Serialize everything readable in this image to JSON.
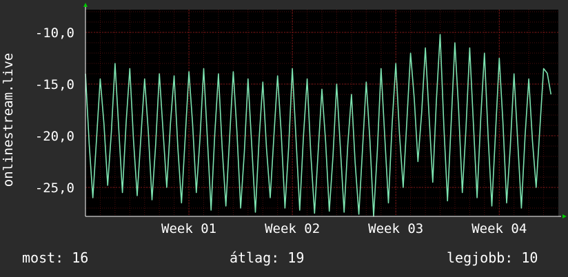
{
  "colors": {
    "background": "#2b2b2b",
    "plot_background": "#000000",
    "grid": "#8a1a1a",
    "axis": "#ffffff",
    "arrow": "#00cc00",
    "series": "#7de3b0"
  },
  "stats": {
    "now": "most: 16",
    "avg": "átlag: 19",
    "best": "legjobb: 10"
  },
  "chart_data": {
    "type": "line",
    "title": "",
    "xlabel": "",
    "ylabel": "onlinestream.live",
    "ylim": [
      -27.8,
      -7.8
    ],
    "yticks": [
      -10,
      -15,
      -20,
      -25
    ],
    "ytick_labels": [
      "-10,0",
      "-15,0",
      "-20,0",
      "-25,0"
    ],
    "xlim": [
      0,
      32
    ],
    "xticks": [
      7,
      14,
      21,
      28
    ],
    "xtick_labels": [
      "Week 01",
      "Week 02",
      "Week 03",
      "Week 04"
    ],
    "grid": true,
    "series": [
      {
        "x": [
          0,
          0.5,
          1,
          1.5,
          2,
          2.5,
          3,
          3.5,
          4,
          4.5,
          5,
          5.5,
          6,
          6.5,
          7,
          7.5,
          8,
          8.5,
          9,
          9.5,
          10,
          10.5,
          11,
          11.5,
          12,
          12.5,
          13,
          13.5,
          14,
          14.5,
          15,
          15.5,
          16,
          16.5,
          17,
          17.5,
          18,
          18.5,
          19,
          19.5,
          20,
          20.5,
          21,
          21.5,
          22,
          22.5,
          23,
          23.5,
          24,
          24.5,
          25,
          25.5,
          26,
          26.5,
          27,
          27.5,
          28,
          28.5,
          29,
          29.5,
          30,
          30.5,
          31,
          31.5
        ],
        "values": [
          -14.0,
          -26.0,
          -14.5,
          -24.8,
          -13.0,
          -25.5,
          -13.5,
          -25.8,
          -14.5,
          -26.2,
          -14.0,
          -25.0,
          -14.2,
          -26.5,
          -13.8,
          -25.5,
          -13.5,
          -27.2,
          -14.0,
          -26.8,
          -13.8,
          -27.0,
          -14.5,
          -27.4,
          -14.8,
          -26.0,
          -14.2,
          -27.0,
          -13.5,
          -27.2,
          -14.5,
          -27.5,
          -15.5,
          -27.3,
          -15.0,
          -27.4,
          -16.0,
          -27.6,
          -14.8,
          -27.8,
          -13.5,
          -26.5,
          -13.0,
          -25.0,
          -12.0,
          -22.5,
          -11.5,
          -24.5,
          -10.2,
          -26.3,
          -11.0,
          -25.5,
          -11.5,
          -26.0,
          -12.0,
          -26.8,
          -12.5,
          -26.5,
          -14.0,
          -27.0,
          -14.5,
          -25.0,
          -13.5,
          -16.0
        ]
      }
    ]
  }
}
